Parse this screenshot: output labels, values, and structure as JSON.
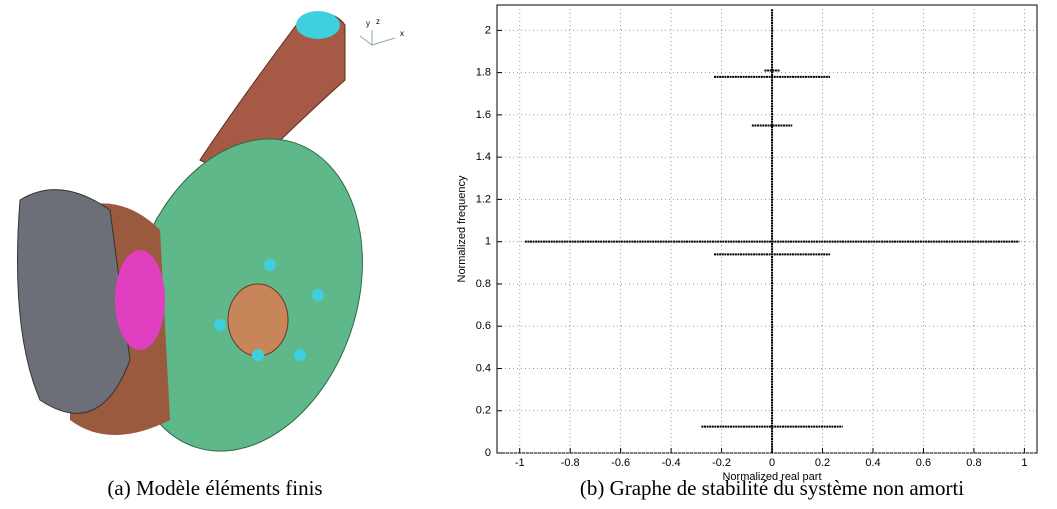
{
  "panel_a": {
    "caption": "(a) Modèle éléments finis",
    "triad": [
      "y",
      "z",
      "x"
    ]
  },
  "chart_data": {
    "type": "line",
    "caption": "(b) Graphe de stabilité du système non amorti",
    "xlabel": "Normalized real part",
    "ylabel": "Normalized frequency",
    "xlim": [
      -1.09,
      1.05
    ],
    "ylim": [
      0,
      2.12
    ],
    "xticks": [
      -1,
      -0.8,
      -0.6,
      -0.4,
      -0.2,
      0,
      0.2,
      0.4,
      0.6,
      0.8,
      1
    ],
    "yticks": [
      0,
      0.2,
      0.4,
      0.6,
      0.8,
      1,
      1.2,
      1.4,
      1.6,
      1.8,
      2
    ],
    "grid": true,
    "color": "#000000",
    "series": [
      {
        "x": [
          -0.98,
          0.98
        ],
        "y": [
          1,
          1
        ]
      },
      {
        "x": [
          -0.23,
          0.23
        ],
        "y": [
          0.94,
          0.94
        ]
      },
      {
        "x": [
          -0.23,
          0.23
        ],
        "y": [
          1.78,
          1.78
        ]
      },
      {
        "x": [
          -0.08,
          0.08
        ],
        "y": [
          1.55,
          1.55
        ]
      },
      {
        "x": [
          -0.28,
          0.28
        ],
        "y": [
          0.125,
          0.125
        ]
      },
      {
        "x": [
          -0.03,
          0.03
        ],
        "y": [
          1.81,
          1.81
        ]
      },
      {
        "x": [
          0,
          0
        ],
        "y": [
          0,
          2.1
        ]
      }
    ]
  }
}
